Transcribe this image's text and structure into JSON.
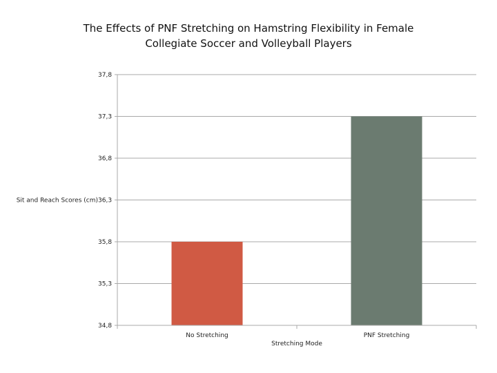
{
  "chart_data": {
    "type": "bar",
    "title_lines": [
      "The Effects of PNF Stretching on Hamstring Flexibility in Female",
      "Collegiate Soccer and Volleyball Players"
    ],
    "xlabel": "Stretching Mode",
    "ylabel": "Sit and Reach Scores (cm)",
    "categories": [
      "No Stretching",
      "PNF Stretching"
    ],
    "values": [
      35.8,
      37.3
    ],
    "ylim": [
      34.8,
      37.8
    ],
    "yticks": [
      "37,8",
      "37,3",
      "36,8",
      "36,3",
      "35,8",
      "35,3",
      "34,8"
    ],
    "colors": [
      "#d05a44",
      "#6b7b70"
    ],
    "grid": true,
    "legend": "none"
  }
}
